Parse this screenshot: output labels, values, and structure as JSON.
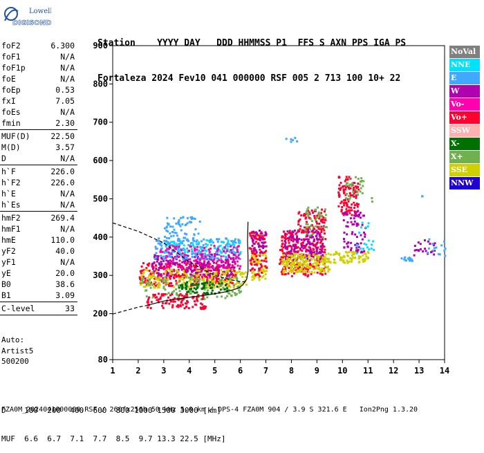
{
  "logo": {
    "line1": "Lowell",
    "line2": "DIGISONDE"
  },
  "header": {
    "labels_line": "Station    YYYY DAY   DDD HHMMSS P1  FFS S AXN PPS IGA PS",
    "values_line": "Fortaleza 2024 Fev10 041 000000 RSF 005 2 713 100 10+ 22"
  },
  "params": {
    "group1": [
      {
        "name": "foF2",
        "value": "6.300"
      },
      {
        "name": "foF1",
        "value": "N/A"
      },
      {
        "name": "foF1p",
        "value": "N/A"
      },
      {
        "name": "foE",
        "value": "N/A"
      },
      {
        "name": "foEp",
        "value": "0.53"
      },
      {
        "name": "fxI",
        "value": "7.05"
      },
      {
        "name": "foEs",
        "value": "N/A"
      },
      {
        "name": "fmin",
        "value": "2.30"
      }
    ],
    "group2": [
      {
        "name": "MUF(D)",
        "value": "22.50"
      },
      {
        "name": "M(D)",
        "value": "3.57"
      },
      {
        "name": "D",
        "value": "N/A"
      }
    ],
    "group3": [
      {
        "name": "h`F",
        "value": "226.0"
      },
      {
        "name": "h`F2",
        "value": "226.0"
      },
      {
        "name": "h`E",
        "value": "N/A"
      },
      {
        "name": "h`Es",
        "value": "N/A"
      }
    ],
    "group4": [
      {
        "name": "hmF2",
        "value": "269.4"
      },
      {
        "name": "hmF1",
        "value": "N/A"
      },
      {
        "name": "hmE",
        "value": "110.0"
      },
      {
        "name": "yF2",
        "value": "40.0"
      },
      {
        "name": "yF1",
        "value": "N/A"
      },
      {
        "name": "yE",
        "value": "20.0"
      },
      {
        "name": "B0",
        "value": "38.6"
      },
      {
        "name": "B1",
        "value": "3.09"
      }
    ],
    "group5": [
      {
        "name": "C-level",
        "value": "33"
      }
    ]
  },
  "auto": {
    "line1": "Auto:",
    "line2": "Artist5",
    "line3": "500200"
  },
  "legend": [
    {
      "label": "NoVal",
      "bg": "#808080",
      "fg": "#ffffff"
    },
    {
      "label": "NNE",
      "bg": "#00e0ff",
      "fg": "#ffffff"
    },
    {
      "label": "E",
      "bg": "#40a8ff",
      "fg": "#ffffff"
    },
    {
      "label": "W",
      "bg": "#b000b0",
      "fg": "#ffffff"
    },
    {
      "label": "Vo-",
      "bg": "#ff00b0",
      "fg": "#ffffff"
    },
    {
      "label": "Vo+",
      "bg": "#ff0030",
      "fg": "#ffffff"
    },
    {
      "label": "SSW",
      "bg": "#ffb0b0",
      "fg": "#ffffff"
    },
    {
      "label": "X-",
      "bg": "#007000",
      "fg": "#ffffff"
    },
    {
      "label": "X+",
      "bg": "#70b050",
      "fg": "#ffffff"
    },
    {
      "label": "SSE",
      "bg": "#d0d000",
      "fg": "#ffffff"
    },
    {
      "label": "NNW",
      "bg": "#2000d0",
      "fg": "#ffffff"
    }
  ],
  "bottom": {
    "d_line": "D    100  200  400  600  800 1000 1500 3000 [km]",
    "muf_line": "MUF  6.6  6.7  7.1  7.7  8.5  9.7 13.3 22.5 [MHz]"
  },
  "footer": "FZA0M_2024041000000.RSF / 260fx256h 50 kHz 5.0 km / DPS-4 FZA0M 904 / 3.9 S 321.6 E   Ion2Png 1.3.20",
  "chart_data": {
    "type": "scatter",
    "xlim": [
      1,
      14
    ],
    "ylim": [
      80,
      900
    ],
    "xticks": [
      1,
      2,
      3,
      4,
      5,
      6,
      7,
      8,
      9,
      10,
      11,
      12,
      13,
      14
    ],
    "yticks": [
      80,
      200,
      300,
      400,
      500,
      600,
      700,
      800,
      900
    ],
    "grid": false,
    "legend_position": "right",
    "profile_solid": [
      [
        2.3,
        221
      ],
      [
        3,
        233
      ],
      [
        3.5,
        238
      ],
      [
        4,
        243
      ],
      [
        4.5,
        247
      ],
      [
        5,
        252
      ],
      [
        5.5,
        258
      ],
      [
        5.9,
        266
      ],
      [
        6.1,
        275
      ],
      [
        6.25,
        290
      ],
      [
        6.3,
        310
      ],
      [
        6.3,
        350
      ],
      [
        6.28,
        390
      ],
      [
        6.3,
        440
      ]
    ],
    "profile_dashed_low": [
      [
        1,
        199
      ],
      [
        1.5,
        208
      ],
      [
        2,
        217
      ],
      [
        2.3,
        221
      ]
    ],
    "profile_dashed_high": [
      [
        1,
        437
      ],
      [
        2,
        415
      ],
      [
        3,
        385
      ],
      [
        4,
        335
      ],
      [
        5,
        300
      ],
      [
        5.6,
        289
      ],
      [
        6.0,
        284
      ],
      [
        6.2,
        283
      ]
    ],
    "clusters": [
      {
        "color": "#ff0030",
        "x": [
          2.0,
          5.8
        ],
        "y": [
          275,
          335
        ],
        "n": 300
      },
      {
        "color": "#b000b0",
        "x": [
          2.5,
          5.8
        ],
        "y": [
          300,
          360
        ],
        "n": 240
      },
      {
        "color": "#d0d000",
        "x": [
          2.0,
          6.2
        ],
        "y": [
          270,
          320
        ],
        "n": 190
      },
      {
        "color": "#40a8ff",
        "x": [
          2.6,
          6.0
        ],
        "y": [
          345,
          400
        ],
        "n": 230
      },
      {
        "color": "#00e0ff",
        "x": [
          3.0,
          6.0
        ],
        "y": [
          360,
          395
        ],
        "n": 70
      },
      {
        "color": "#40a8ff",
        "x": [
          3.0,
          4.4
        ],
        "y": [
          400,
          455
        ],
        "n": 55
      },
      {
        "color": "#ff00b0",
        "x": [
          2.8,
          6.0
        ],
        "y": [
          320,
          380
        ],
        "n": 110
      },
      {
        "color": "#70b050",
        "x": [
          2.0,
          6.0
        ],
        "y": [
          240,
          300
        ],
        "n": 120
      },
      {
        "color": "#ff0030",
        "x": [
          2.3,
          4.6
        ],
        "y": [
          215,
          255
        ],
        "n": 110
      },
      {
        "color": "#007000",
        "x": [
          3.5,
          5.5
        ],
        "y": [
          255,
          285
        ],
        "n": 60
      },
      {
        "color": "#d0d000",
        "x": [
          6.4,
          7.0
        ],
        "y": [
          290,
          360
        ],
        "n": 60
      },
      {
        "color": "#ff0030",
        "x": [
          6.3,
          7.0
        ],
        "y": [
          300,
          420
        ],
        "n": 90
      },
      {
        "color": "#b000b0",
        "x": [
          6.4,
          7.0
        ],
        "y": [
          360,
          420
        ],
        "n": 40
      },
      {
        "color": "#ff0030",
        "x": [
          7.5,
          9.3
        ],
        "y": [
          300,
          420
        ],
        "n": 260
      },
      {
        "color": "#b000b0",
        "x": [
          7.7,
          9.2
        ],
        "y": [
          340,
          420
        ],
        "n": 150
      },
      {
        "color": "#d0d000",
        "x": [
          7.6,
          9.5
        ],
        "y": [
          310,
          360
        ],
        "n": 180
      },
      {
        "color": "#ff0030",
        "x": [
          8.2,
          9.3
        ],
        "y": [
          420,
          475
        ],
        "n": 70
      },
      {
        "color": "#70b050",
        "x": [
          8.5,
          9.4
        ],
        "y": [
          400,
          480
        ],
        "n": 40
      },
      {
        "color": "#d0d000",
        "x": [
          9.6,
          11.0
        ],
        "y": [
          335,
          365
        ],
        "n": 70
      },
      {
        "color": "#ff0030",
        "x": [
          9.8,
          10.6
        ],
        "y": [
          460,
          560
        ],
        "n": 110
      },
      {
        "color": "#b000b0",
        "x": [
          10.0,
          10.9
        ],
        "y": [
          360,
          470
        ],
        "n": 70
      },
      {
        "color": "#70b050",
        "x": [
          10.1,
          10.8
        ],
        "y": [
          500,
          560
        ],
        "n": 30
      },
      {
        "color": "#00e0ff",
        "x": [
          10.5,
          11.2
        ],
        "y": [
          360,
          440
        ],
        "n": 20
      },
      {
        "color": "#40a8ff",
        "x": [
          12.2,
          12.7
        ],
        "y": [
          340,
          350
        ],
        "n": 14
      },
      {
        "color": "#b000b0",
        "x": [
          12.7,
          13.6
        ],
        "y": [
          355,
          395
        ],
        "n": 22
      },
      {
        "color": "#40a8ff",
        "x": [
          13.3,
          14.0
        ],
        "y": [
          350,
          400
        ],
        "n": 14
      },
      {
        "color": "#40a8ff",
        "x": [
          7.7,
          8.2
        ],
        "y": [
          650,
          662
        ],
        "n": 6
      },
      {
        "color": "#40a8ff",
        "x": [
          13.05,
          13.15
        ],
        "y": [
          505,
          512
        ],
        "n": 2
      },
      {
        "color": "#70b050",
        "x": [
          11.1,
          11.2
        ],
        "y": [
          495,
          505
        ],
        "n": 2
      }
    ]
  }
}
